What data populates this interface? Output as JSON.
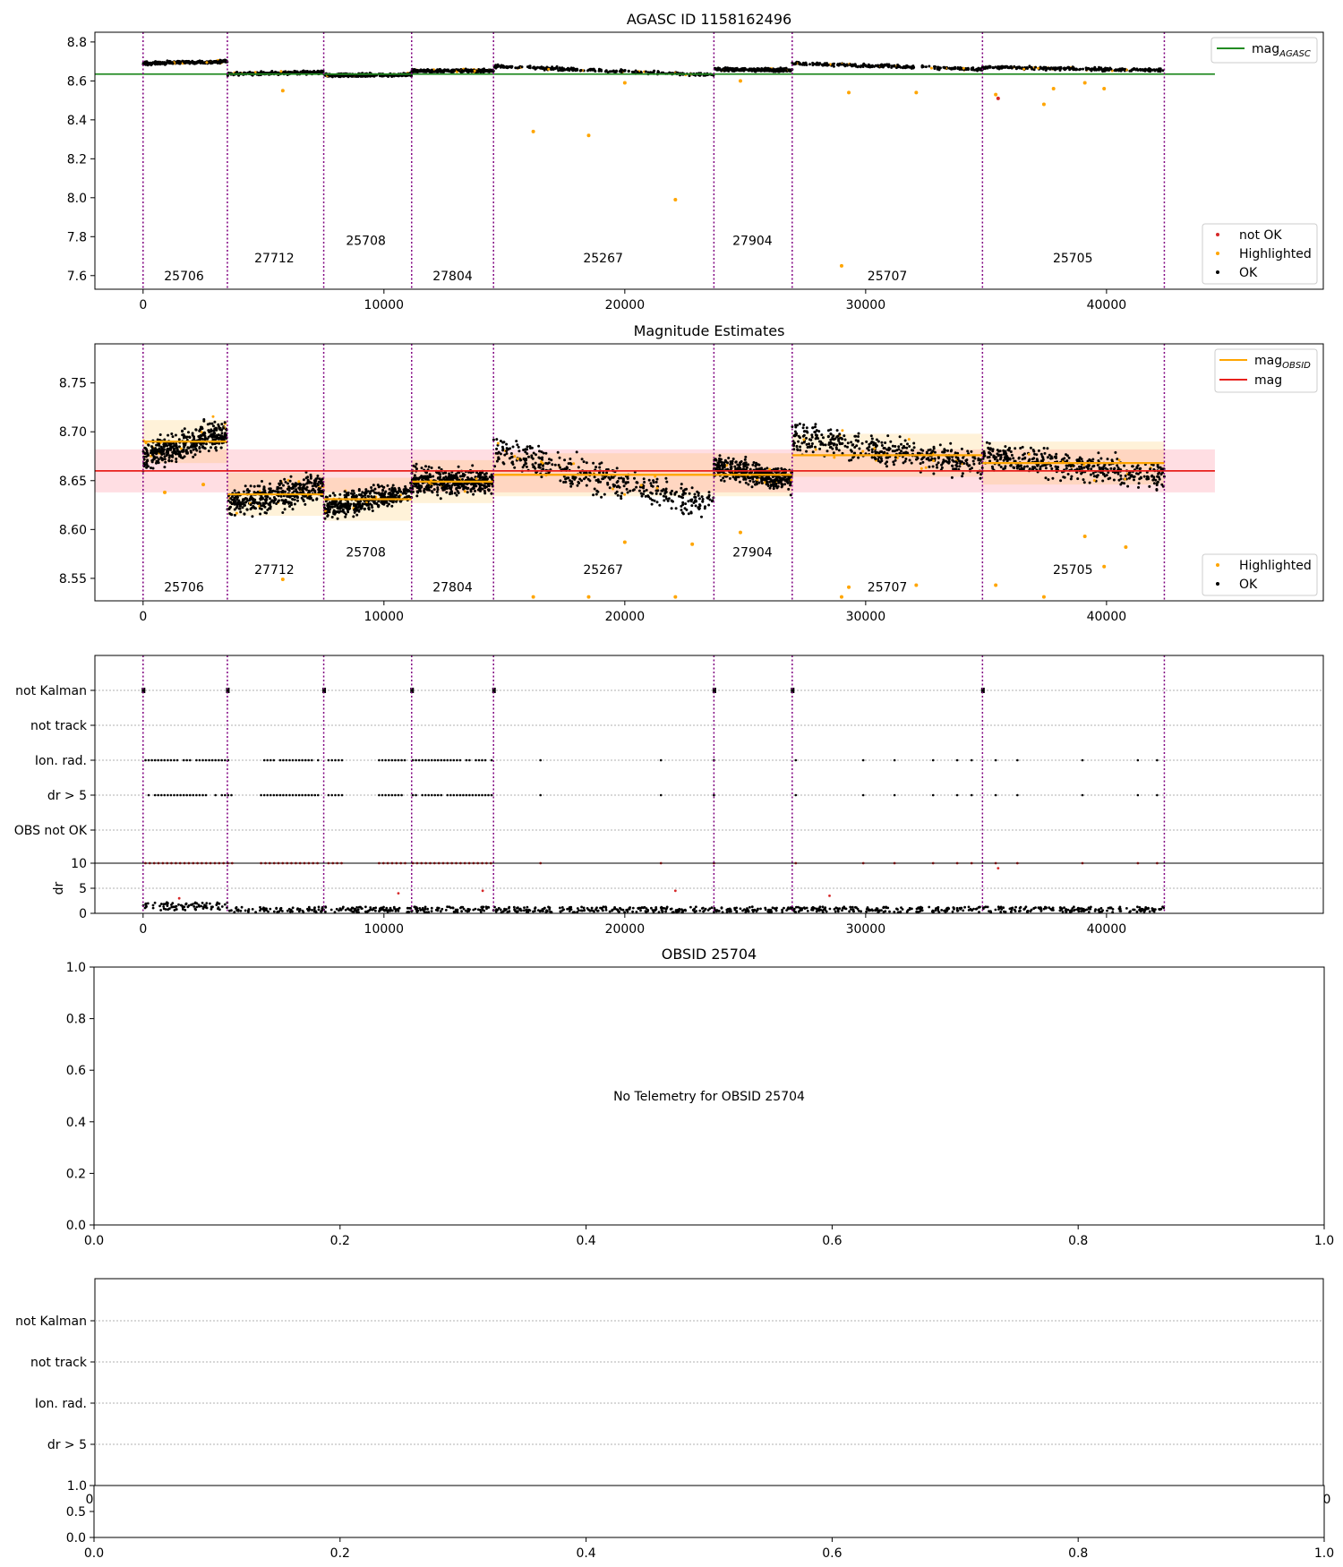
{
  "colors": {
    "ok": "#000000",
    "highlighted": "#ffa500",
    "not_ok": "#d62728",
    "mag_agasc": "#228b22",
    "mag_obsid": "#ffa500",
    "mag": "#e8201c",
    "band": "#ffb6c1",
    "obs_boundary": "#800080",
    "grid": "#b0b0b0"
  },
  "chart_data": [
    {
      "type": "scatter",
      "title": "AGASC ID 1158162496",
      "xlim": [
        -2000,
        49000
      ],
      "ylim": [
        7.53,
        8.85
      ],
      "yticks": [
        "7.6",
        "7.8",
        "8.0",
        "8.2",
        "8.4",
        "8.6",
        "8.8"
      ],
      "xticks": [
        "0",
        "10000",
        "20000",
        "30000",
        "40000"
      ],
      "mag_agasc": 8.635,
      "obs_boundaries": [
        0,
        3500,
        7500,
        11150,
        14550,
        23700,
        26950,
        34850,
        42400
      ],
      "segments": [
        {
          "obsid": "25706",
          "x_start": 0,
          "x_end": 3500,
          "y_start": 8.69,
          "y_end": 8.7
        },
        {
          "obsid": "27712",
          "x_start": 3500,
          "x_end": 7500,
          "y_start": 8.635,
          "y_end": 8.645
        },
        {
          "obsid": "25708",
          "x_start": 7500,
          "x_end": 11150,
          "y_start": 8.628,
          "y_end": 8.632
        },
        {
          "obsid": "27804",
          "x_start": 11150,
          "x_end": 14550,
          "y_start": 8.652,
          "y_end": 8.652
        },
        {
          "obsid": "25267",
          "x_start": 14550,
          "x_end": 23700,
          "y_start": 8.675,
          "y_end": 8.63
        },
        {
          "obsid": "27904",
          "x_start": 23700,
          "x_end": 26950,
          "y_start": 8.66,
          "y_end": 8.655
        },
        {
          "obsid": "25707",
          "x_start": 26950,
          "x_end": 34850,
          "y_start": 8.69,
          "y_end": 8.66
        },
        {
          "obsid": "25705",
          "x_start": 34850,
          "x_end": 42400,
          "y_start": 8.67,
          "y_end": 8.655
        }
      ],
      "obsid_labels": [
        {
          "text": "25706",
          "x": 1700,
          "y": 7.6
        },
        {
          "text": "27712",
          "x": 5450,
          "y": 7.69
        },
        {
          "text": "25708",
          "x": 9250,
          "y": 7.78
        },
        {
          "text": "27804",
          "x": 12850,
          "y": 7.6
        },
        {
          "text": "25267",
          "x": 19100,
          "y": 7.69
        },
        {
          "text": "27904",
          "x": 25300,
          "y": 7.78
        },
        {
          "text": "25707",
          "x": 30900,
          "y": 7.6
        },
        {
          "text": "25705",
          "x": 38600,
          "y": 7.69
        }
      ],
      "highlighted_outliers": [
        {
          "x": 16200,
          "y": 8.34
        },
        {
          "x": 18500,
          "y": 8.32
        },
        {
          "x": 22100,
          "y": 7.99
        },
        {
          "x": 29000,
          "y": 7.65
        },
        {
          "x": 29300,
          "y": 8.54
        },
        {
          "x": 32100,
          "y": 8.54
        },
        {
          "x": 35400,
          "y": 8.53
        },
        {
          "x": 37400,
          "y": 8.48
        },
        {
          "x": 37800,
          "y": 8.56
        },
        {
          "x": 39100,
          "y": 8.59
        },
        {
          "x": 39900,
          "y": 8.56
        },
        {
          "x": 5800,
          "y": 8.55
        },
        {
          "x": 24800,
          "y": 8.6
        },
        {
          "x": 20000,
          "y": 8.59
        }
      ],
      "not_ok_points": [
        {
          "x": 35500,
          "y": 8.51
        }
      ],
      "legend_top": [
        "mag",
        "AGASC"
      ],
      "legend_bottom": [
        "not OK",
        "Highlighted",
        "OK"
      ]
    },
    {
      "type": "scatter",
      "title": "Magnitude Estimates",
      "xlim": [
        -2000,
        49000
      ],
      "ylim": [
        8.527,
        8.79
      ],
      "yticks": [
        "8.55",
        "8.60",
        "8.65",
        "8.70",
        "8.75"
      ],
      "xticks": [
        "0",
        "10000",
        "20000",
        "30000",
        "40000"
      ],
      "mag": 8.66,
      "mag_band": [
        8.638,
        8.682
      ],
      "obs_boundaries": [
        0,
        3500,
        7500,
        11150,
        14550,
        23700,
        26950,
        34850,
        42400
      ],
      "segments": [
        {
          "obsid": "25706",
          "x_start": 0,
          "x_end": 3500,
          "y_start": 8.675,
          "y_end": 8.7,
          "spread": 0.013,
          "mag_obsid": 8.69
        },
        {
          "obsid": "27712",
          "x_start": 3500,
          "x_end": 7500,
          "y_start": 8.625,
          "y_end": 8.645,
          "spread": 0.012,
          "mag_obsid": 8.636
        },
        {
          "obsid": "25708",
          "x_start": 7500,
          "x_end": 11150,
          "y_start": 8.622,
          "y_end": 8.638,
          "spread": 0.01,
          "mag_obsid": 8.631
        },
        {
          "obsid": "27804",
          "x_start": 11150,
          "x_end": 14550,
          "y_start": 8.65,
          "y_end": 8.648,
          "spread": 0.011,
          "mag_obsid": 8.649
        },
        {
          "obsid": "25267",
          "x_start": 14550,
          "x_end": 23700,
          "y_start": 8.68,
          "y_end": 8.625,
          "spread": 0.014,
          "mag_obsid": 8.656
        },
        {
          "obsid": "27904",
          "x_start": 23700,
          "x_end": 26950,
          "y_start": 8.665,
          "y_end": 8.65,
          "spread": 0.01,
          "mag_obsid": 8.656
        },
        {
          "obsid": "25707",
          "x_start": 26950,
          "x_end": 34850,
          "y_start": 8.695,
          "y_end": 8.665,
          "spread": 0.013,
          "mag_obsid": 8.676
        },
        {
          "obsid": "25705",
          "x_start": 34850,
          "x_end": 42400,
          "y_start": 8.675,
          "y_end": 8.655,
          "spread": 0.012,
          "mag_obsid": 8.668
        }
      ],
      "obsid_labels": [
        {
          "text": "25706",
          "x": 1700,
          "y": 8.541
        },
        {
          "text": "27712",
          "x": 5450,
          "y": 8.559
        },
        {
          "text": "25708",
          "x": 9250,
          "y": 8.577
        },
        {
          "text": "27804",
          "x": 12850,
          "y": 8.541
        },
        {
          "text": "25267",
          "x": 19100,
          "y": 8.559
        },
        {
          "text": "27904",
          "x": 25300,
          "y": 8.577
        },
        {
          "text": "25707",
          "x": 30900,
          "y": 8.541
        },
        {
          "text": "25705",
          "x": 38600,
          "y": 8.559
        }
      ],
      "highlighted_outliers": [
        {
          "x": 16200,
          "y": 8.531
        },
        {
          "x": 18500,
          "y": 8.531
        },
        {
          "x": 22100,
          "y": 8.531
        },
        {
          "x": 29000,
          "y": 8.531
        },
        {
          "x": 37400,
          "y": 8.531
        },
        {
          "x": 20000,
          "y": 8.587
        },
        {
          "x": 5800,
          "y": 8.549
        },
        {
          "x": 29300,
          "y": 8.541
        },
        {
          "x": 32100,
          "y": 8.543
        },
        {
          "x": 35400,
          "y": 8.543
        },
        {
          "x": 39100,
          "y": 8.593
        },
        {
          "x": 39900,
          "y": 8.562
        },
        {
          "x": 40800,
          "y": 8.582
        },
        {
          "x": 22800,
          "y": 8.585
        },
        {
          "x": 24800,
          "y": 8.597
        },
        {
          "x": 900,
          "y": 8.638
        },
        {
          "x": 2500,
          "y": 8.646
        }
      ],
      "legend_top": [
        "mag",
        "OBSID",
        "mag"
      ],
      "legend_bottom": [
        "Highlighted",
        "OK"
      ]
    },
    {
      "type": "scatter",
      "title": "",
      "xlim": [
        -2000,
        49000
      ],
      "xticks": [
        "0",
        "10000",
        "20000",
        "30000",
        "40000"
      ],
      "flag_rows": [
        "not Kalman",
        "not track",
        "Ion. rad.",
        "dr > 5",
        "OBS not OK"
      ],
      "not_kalman_x": [
        0,
        3500,
        7500,
        11150,
        14550,
        23700,
        26950,
        34850
      ],
      "ion_rad_dense": [
        [
          100,
          3800
        ],
        [
          4900,
          7400
        ],
        [
          7700,
          8400
        ],
        [
          9800,
          11000
        ],
        [
          11200,
          14600
        ]
      ],
      "ion_rad_sparse": [
        16500,
        21500,
        23700,
        27100,
        29900,
        31200,
        32800,
        33800,
        34400,
        35400,
        36300,
        39000,
        41300,
        42100
      ],
      "dr_ylabel": "dr",
      "dr_ylim": [
        0,
        10
      ],
      "dr_yticks": [
        "0",
        "5",
        "10"
      ],
      "dr_sparse_red": [
        {
          "x": 1500,
          "y": 3
        },
        {
          "x": 10600,
          "y": 4
        },
        {
          "x": 14100,
          "y": 4.5
        },
        {
          "x": 22100,
          "y": 4.5
        },
        {
          "x": 28500,
          "y": 3.5
        },
        {
          "x": 35500,
          "y": 9
        }
      ]
    },
    {
      "type": "scatter",
      "title": "OBSID 25704",
      "message": "No Telemetry for OBSID 25704",
      "yticks": [
        "0.0",
        "0.2",
        "0.4",
        "0.6",
        "0.8",
        "1.0"
      ],
      "xticks": [
        "0.0",
        "0.2",
        "0.4",
        "0.6",
        "0.8",
        "1.0"
      ]
    },
    {
      "type": "scatter",
      "title": "",
      "flag_rows": [
        "not Kalman",
        "not track",
        "Ion. rad.",
        "dr > 5"
      ],
      "top_ytick": "1.0",
      "clipped_xticks": [
        "0",
        "0"
      ],
      "small_yticks": [
        "0.0",
        "0.5",
        "1.0"
      ],
      "xticks": [
        "0.0",
        "0.2",
        "0.4",
        "0.6",
        "0.8",
        "1.0"
      ]
    }
  ]
}
